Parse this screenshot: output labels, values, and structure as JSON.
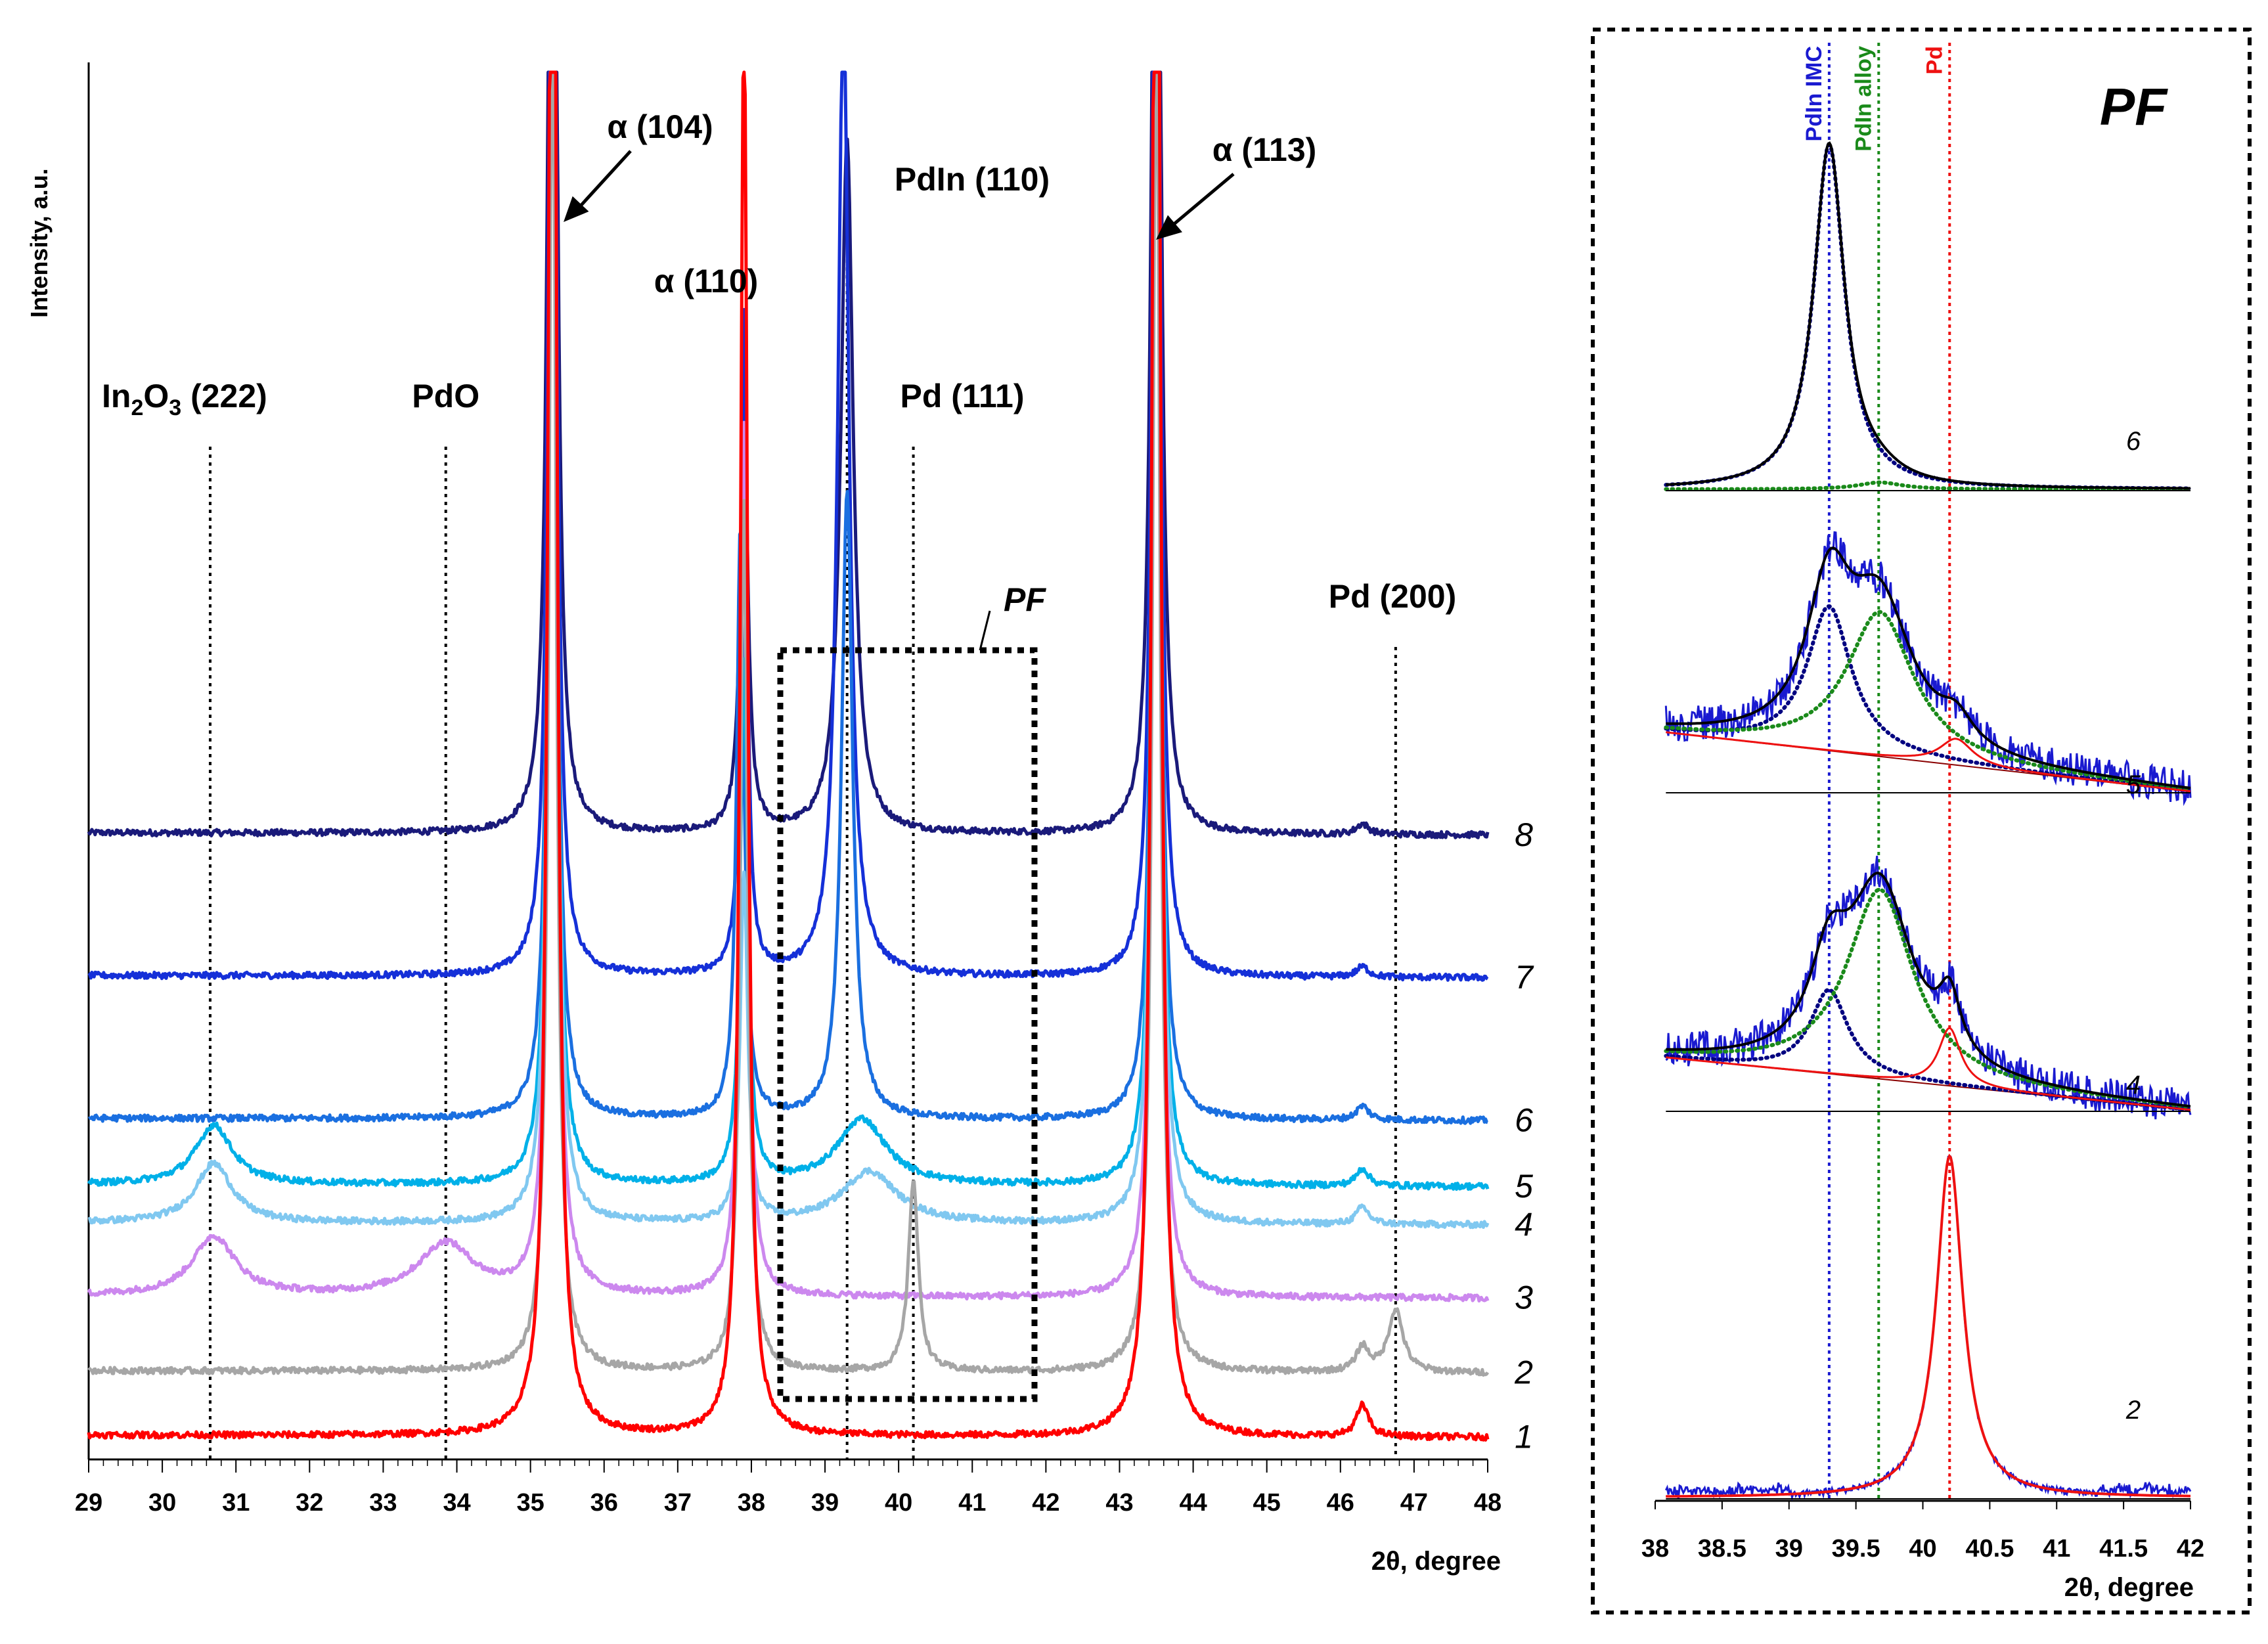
{
  "chart_data": [
    {
      "type": "line",
      "panel": "main",
      "xlabel": "2θ, degree",
      "ylabel": "Intensity, a.u.",
      "xlim": [
        29,
        48
      ],
      "x_ticks": [
        29,
        30,
        31,
        32,
        33,
        34,
        35,
        36,
        37,
        38,
        39,
        40,
        41,
        42,
        43,
        44,
        45,
        46,
        47,
        48
      ],
      "peak_labels": [
        {
          "name": "In2O3",
          "hkl": "(222)",
          "text_base": "In",
          "sub1": "2",
          "mid": "O",
          "sub2": "3",
          "rest": " (222)",
          "position": 30.65
        },
        {
          "name": "PdO",
          "text": "PdO",
          "position": 33.85
        },
        {
          "text": "α (104)",
          "position": 35.3,
          "arrow": true
        },
        {
          "text": "α (110)",
          "position": 37.9
        },
        {
          "text": "PdIn (110)",
          "position": 39.3
        },
        {
          "text": "Pd (111)",
          "position": 40.2
        },
        {
          "text": "α (113)",
          "position": 43.5,
          "arrow": true
        },
        {
          "text": "Pd (200)",
          "position": 46.75
        }
      ],
      "inset_box": {
        "label": "PF",
        "x_range": [
          38.4,
          41.9
        ]
      },
      "series": [
        {
          "name": "1",
          "color": "#ff0000",
          "baseline": 1,
          "peaks": [
            [
              35.3,
              60,
              0.06
            ],
            [
              37.9,
              41,
              0.06
            ],
            [
              43.5,
              60,
              0.06
            ],
            [
              46.3,
              0.9,
              0.1
            ]
          ]
        },
        {
          "name": "2",
          "color": "#a6a6a6",
          "baseline": 2.85,
          "peaks": [
            [
              35.3,
              40,
              0.06
            ],
            [
              37.9,
              25,
              0.06
            ],
            [
              40.2,
              5.5,
              0.08
            ],
            [
              43.5,
              40,
              0.06
            ],
            [
              46.3,
              0.7,
              0.1
            ],
            [
              46.75,
              1.8,
              0.12
            ]
          ]
        },
        {
          "name": "3",
          "color": "#cc88ee",
          "baseline": 5.0,
          "peaks": [
            [
              30.7,
              1.7,
              0.35
            ],
            [
              33.85,
              1.5,
              0.45
            ],
            [
              35.3,
              40,
              0.06
            ],
            [
              37.9,
              25,
              0.06
            ],
            [
              43.5,
              40,
              0.06
            ]
          ]
        },
        {
          "name": "4",
          "color": "#80c8f0",
          "baseline": 7.1,
          "peaks": [
            [
              30.7,
              1.7,
              0.3
            ],
            [
              35.3,
              40,
              0.06
            ],
            [
              37.9,
              10,
              0.06
            ],
            [
              39.6,
              1.5,
              0.45
            ],
            [
              43.5,
              40,
              0.06
            ],
            [
              46.3,
              0.5,
              0.1
            ]
          ]
        },
        {
          "name": "5",
          "color": "#00b0e8",
          "baseline": 8.2,
          "peaks": [
            [
              30.7,
              1.7,
              0.3
            ],
            [
              35.3,
              40,
              0.06
            ],
            [
              37.9,
              15,
              0.06
            ],
            [
              39.5,
              1.9,
              0.4
            ],
            [
              43.5,
              40,
              0.06
            ],
            [
              46.3,
              0.5,
              0.1
            ]
          ]
        },
        {
          "name": "6",
          "color": "#1a6fe0",
          "baseline": 10.1,
          "peaks": [
            [
              35.3,
              40,
              0.06
            ],
            [
              37.85,
              17,
              0.06
            ],
            [
              39.3,
              18,
              0.09
            ],
            [
              43.5,
              40,
              0.06
            ],
            [
              46.3,
              0.4,
              0.1
            ]
          ]
        },
        {
          "name": "7",
          "color": "#1530d8",
          "baseline": 14.2,
          "peaks": [
            [
              35.3,
              42,
              0.06
            ],
            [
              37.9,
              19,
              0.05
            ],
            [
              39.25,
              28,
              0.09
            ],
            [
              43.5,
              42,
              0.06
            ],
            [
              46.3,
              0.3,
              0.1
            ]
          ]
        },
        {
          "name": "8",
          "color": "#1a1a7a",
          "baseline": 18.3,
          "peaks": [
            [
              35.3,
              45,
              0.06
            ],
            [
              37.9,
              13,
              0.06
            ],
            [
              39.3,
              20,
              0.1
            ],
            [
              43.5,
              45,
              0.06
            ],
            [
              46.3,
              0.3,
              0.1
            ]
          ]
        }
      ]
    },
    {
      "type": "line",
      "panel": "inset",
      "title": "PF",
      "xlabel": "2θ, degree",
      "xlim": [
        38,
        42
      ],
      "x_ticks": [
        "38",
        "38.5",
        "39",
        "39.5",
        "40",
        "40.5",
        "41",
        "41.5",
        "42"
      ],
      "reference_lines": [
        {
          "label": "PdIn IMC",
          "position": 39.3,
          "color": "#1a1ad0"
        },
        {
          "label": "PdIn alloy",
          "position": 39.67,
          "color": "#1a8a1a"
        },
        {
          "label": "Pd",
          "position": 40.2,
          "color": "#ee1111"
        }
      ],
      "series": [
        {
          "name": "6",
          "components": [
            {
              "phase": "PdIn IMC",
              "center": 39.3,
              "height": 1.0,
              "width": 0.14
            },
            {
              "phase": "PdIn alloy",
              "center": 39.68,
              "height": 0.02,
              "width": 0.2
            }
          ],
          "measured_color": "#1a1a7a",
          "fit_color": "#000000"
        },
        {
          "name": "5",
          "components": [
            {
              "phase": "PdIn IMC",
              "center": 39.3,
              "height": 0.55,
              "width": 0.2
            },
            {
              "phase": "PdIn alloy",
              "center": 39.68,
              "height": 0.55,
              "width": 0.3
            },
            {
              "phase": "Pd",
              "center": 40.25,
              "height": 0.1,
              "width": 0.15
            }
          ],
          "measured_color": "#1a1ad0",
          "fit_color": "#000000"
        },
        {
          "name": "4",
          "components": [
            {
              "phase": "PdIn IMC",
              "center": 39.3,
              "height": 0.32,
              "width": 0.17
            },
            {
              "phase": "PdIn alloy",
              "center": 39.68,
              "height": 0.72,
              "width": 0.3
            },
            {
              "phase": "Pd",
              "center": 40.2,
              "height": 0.22,
              "width": 0.1
            }
          ],
          "measured_color": "#1a1ad0",
          "fit_color": "#000000"
        },
        {
          "name": "2",
          "components": [
            {
              "phase": "Pd",
              "center": 40.2,
              "height": 1.0,
              "width": 0.12
            }
          ],
          "measured_color": "#1a1ad0",
          "fit_color": "#ee1111"
        }
      ]
    }
  ]
}
